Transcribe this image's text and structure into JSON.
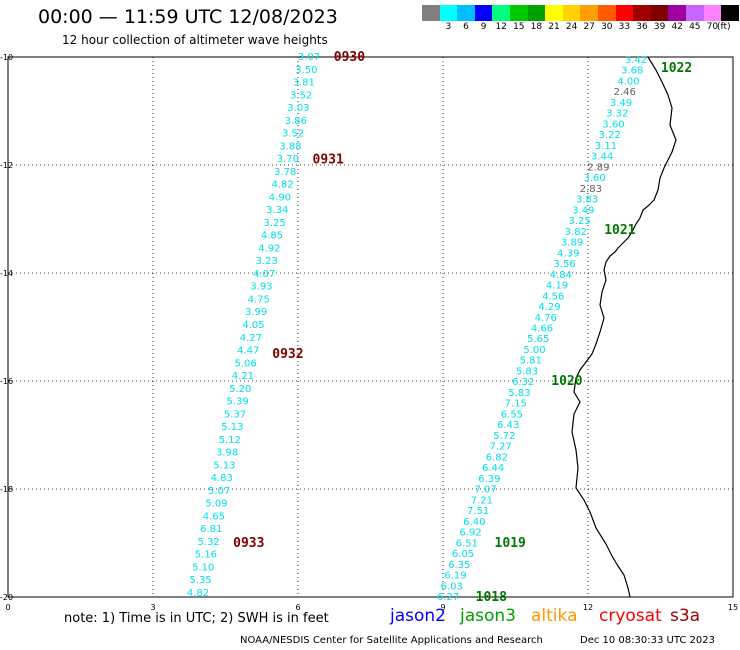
{
  "header": {
    "title": "00:00 — 11:59 UTC 12/08/2023",
    "subtitle": "12 hour collection of altimeter wave heights"
  },
  "colorbar": {
    "colors": [
      "#808080",
      "#00ffff",
      "#00bfff",
      "#0000ff",
      "#00ff7f",
      "#00c800",
      "#00a000",
      "#ffff00",
      "#ffd200",
      "#ffa000",
      "#ff5a00",
      "#ff0000",
      "#a00000",
      "#800000",
      "#a000a0",
      "#c864ff",
      "#ff80ff",
      "#000000"
    ],
    "labels": [
      "3",
      "6",
      "9",
      "12",
      "15",
      "18",
      "21",
      "24",
      "27",
      "30",
      "33",
      "36",
      "39",
      "42",
      "45",
      "70"
    ],
    "unit": "(ft)"
  },
  "axes": {
    "lat_labels": [
      "-10",
      "-12",
      "-14",
      "-16",
      "-18",
      "-20"
    ],
    "lon_labels": [
      "0",
      "3",
      "6",
      "9",
      "12",
      "15"
    ]
  },
  "passes": {
    "track_a": {
      "heights": [
        "3.07",
        "3.50",
        "3.81",
        "3.52",
        "3.03",
        "3.86",
        "3.52",
        "3.88",
        "3.70",
        "3.78",
        "4.82",
        "4.90",
        "3.34",
        "3.25",
        "4.85",
        "4.92",
        "3.23",
        "4.07",
        "3.93",
        "4.75",
        "3.99",
        "4.05",
        "4.27",
        "4.47",
        "5.06",
        "4.21",
        "5.20",
        "5.39",
        "5.37",
        "5.13",
        "5.12",
        "3.98",
        "5.13",
        "4.83",
        "5.07",
        "5.09",
        "4.65",
        "6.81",
        "5.32",
        "5.16",
        "5.10",
        "5.35",
        "4.82"
      ],
      "times": [
        {
          "label": "0930",
          "lat": -10.0
        },
        {
          "label": "0931",
          "lat": -11.9
        },
        {
          "label": "0932",
          "lat": -15.5
        },
        {
          "label": "0933",
          "lat": -19.0
        }
      ]
    },
    "track_b": {
      "heights": [
        "3.42",
        "3.68",
        "4.00",
        "2.46",
        "3.49",
        "3.32",
        "3.60",
        "3.22",
        "3.11",
        "3.44",
        "2.89",
        "3.60",
        "2.83",
        "3.83",
        "3.49",
        "3.25",
        "3.82",
        "3.89",
        "4.39",
        "3.56",
        "4.84",
        "4.19",
        "4.56",
        "4.29",
        "4.76",
        "4.66",
        "5.65",
        "5.00",
        "5.81",
        "5.83",
        "6.32",
        "5.83",
        "7.15",
        "6.55",
        "6.43",
        "5.72",
        "7.27",
        "6.82",
        "6.44",
        "6.39",
        "7.07",
        "7.21",
        "7.51",
        "6.40",
        "6.92",
        "6.51",
        "6.05",
        "6.35",
        "6.19",
        "6.03",
        "6.27"
      ],
      "gray_indices": [
        3,
        10,
        12
      ],
      "times": [
        {
          "label": "1022",
          "lat": -10.2
        },
        {
          "label": "1021",
          "lat": -13.2
        },
        {
          "label": "1020",
          "lat": -16.0
        },
        {
          "label": "1019",
          "lat": -19.0
        },
        {
          "label": "1018",
          "lat": -20.0
        }
      ]
    }
  },
  "footer": {
    "note": "note:  1) Time is in UTC;  2) SWH is in feet",
    "satellites": [
      {
        "name": "jason2",
        "color": "#0000ff"
      },
      {
        "name": "jason3",
        "color": "#00a000"
      },
      {
        "name": "altika",
        "color": "#ff9900"
      },
      {
        "name": "cryosat",
        "color": "#ff0000"
      },
      {
        "name": "s3a",
        "color": "#a00000"
      }
    ],
    "credit": "NOAA/NESDIS Center for Satellite Applications and Research",
    "timestamp": "Dec 10 08:30:33 UTC 2023"
  },
  "colors": {
    "swh_cyan": "#00e0e8",
    "swh_gray": "#606060",
    "time_track_a": "#800000",
    "time_track_b": "#007800",
    "coast": "#000000",
    "grid": "#000000"
  }
}
